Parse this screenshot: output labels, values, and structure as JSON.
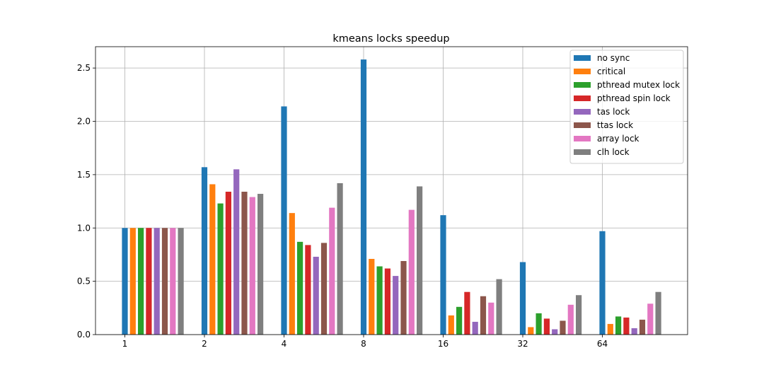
{
  "chart_data": {
    "type": "bar",
    "title": "kmeans locks speedup",
    "xlabel": "",
    "ylabel": "",
    "categories": [
      "1",
      "2",
      "4",
      "8",
      "16",
      "32",
      "64"
    ],
    "ylim": [
      0,
      2.7
    ],
    "yticks": [
      0.0,
      0.5,
      1.0,
      1.5,
      2.0,
      2.5
    ],
    "ytick_labels": [
      "0.0",
      "0.5",
      "1.0",
      "1.5",
      "2.0",
      "2.5"
    ],
    "grid": true,
    "legend_position": "top-right",
    "series": [
      {
        "name": "no sync",
        "color": "#1f77b4",
        "values": [
          1.0,
          1.57,
          2.14,
          2.58,
          1.12,
          0.68,
          0.97
        ]
      },
      {
        "name": "critical",
        "color": "#ff7f0e",
        "values": [
          1.0,
          1.41,
          1.14,
          0.71,
          0.18,
          0.07,
          0.1
        ]
      },
      {
        "name": "pthread mutex lock",
        "color": "#2ca02c",
        "values": [
          1.0,
          1.23,
          0.87,
          0.64,
          0.26,
          0.2,
          0.17
        ]
      },
      {
        "name": "pthread spin lock",
        "color": "#d62728",
        "values": [
          1.0,
          1.34,
          0.84,
          0.62,
          0.4,
          0.15,
          0.16
        ]
      },
      {
        "name": "tas lock",
        "color": "#9467bd",
        "values": [
          1.0,
          1.55,
          0.73,
          0.55,
          0.12,
          0.05,
          0.06
        ]
      },
      {
        "name": "ttas lock",
        "color": "#8c564b",
        "values": [
          1.0,
          1.34,
          0.86,
          0.69,
          0.36,
          0.13,
          0.14
        ]
      },
      {
        "name": "array lock",
        "color": "#e377c2",
        "values": [
          1.0,
          1.29,
          1.19,
          1.17,
          0.3,
          0.28,
          0.29
        ]
      },
      {
        "name": "clh lock",
        "color": "#7f7f7f",
        "values": [
          1.0,
          1.32,
          1.42,
          1.39,
          0.52,
          0.37,
          0.4
        ]
      }
    ]
  }
}
